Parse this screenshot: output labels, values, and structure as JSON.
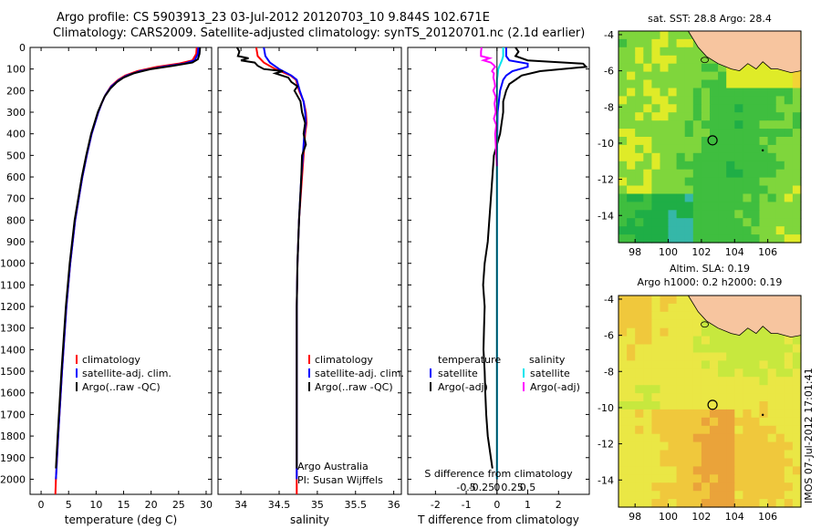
{
  "header": {
    "title1": "Argo profile: CS 5903913_23 03-Jul-2012 20120703_10 9.844S 102.671E",
    "title2": "Climatology: CARS2009. Satellite-adjusted climatology: synTS_20120701.nc (2.1d earlier)"
  },
  "stamp": "IMOS 07-Jul-2012 17:01:41",
  "colors": {
    "climatology": "#ff0000",
    "satellite": "#0000ff",
    "argo": "#000000",
    "temp_sat_diff": "#0000ff",
    "sal_sat_diff": "#00e5ee",
    "sal_argo_diff": "#ff00ff",
    "land": "#f7c59f"
  },
  "chart_data": [
    {
      "type": "line",
      "id": "temperature-profile",
      "xlabel": "temperature (deg C)",
      "xlim": [
        -2,
        31
      ],
      "xticks": [
        0,
        5,
        10,
        15,
        20,
        25,
        30
      ],
      "ylim": [
        2070,
        0
      ],
      "yticks": [
        0,
        100,
        200,
        300,
        400,
        500,
        600,
        700,
        800,
        900,
        1000,
        1100,
        1200,
        1300,
        1400,
        1500,
        1600,
        1700,
        1800,
        1900,
        2000
      ],
      "legend": [
        "climatology",
        "satellite-adj. clim.",
        "Argo(..raw -QC)"
      ],
      "series": [
        {
          "name": "climatology",
          "color": "#ff0000",
          "depth": [
            0,
            30,
            60,
            75,
            90,
            110,
            130,
            150,
            180,
            220,
            260,
            300,
            400,
            500,
            600,
            800,
            1000,
            1200,
            1500,
            1800,
            2000,
            2070
          ],
          "values": [
            28.3,
            28.2,
            27.5,
            25.0,
            21.0,
            17.5,
            15.3,
            14.0,
            12.7,
            11.7,
            11.0,
            10.4,
            9.2,
            8.3,
            7.5,
            6.2,
            5.3,
            4.6,
            3.8,
            3.1,
            2.7,
            2.6
          ]
        },
        {
          "name": "satellite-adj. clim.",
          "color": "#0000ff",
          "depth": [
            0,
            30,
            60,
            75,
            90,
            110,
            130,
            150,
            180,
            220,
            260,
            300,
            400,
            500,
            600,
            800,
            1000,
            1200,
            1500,
            1800,
            2000
          ],
          "values": [
            28.6,
            28.5,
            27.9,
            26.0,
            22.0,
            18.0,
            15.6,
            14.2,
            12.8,
            11.7,
            11.0,
            10.4,
            9.2,
            8.3,
            7.5,
            6.2,
            5.3,
            4.6,
            3.8,
            3.1,
            2.7
          ]
        },
        {
          "name": "Argo(..raw -QC)",
          "color": "#000000",
          "depth": [
            0,
            30,
            55,
            70,
            85,
            100,
            120,
            140,
            160,
            190,
            230,
            270,
            300,
            400,
            500,
            600,
            800,
            1000,
            1200,
            1500,
            1800,
            1950
          ],
          "values": [
            28.9,
            28.8,
            28.5,
            27.5,
            24.0,
            20.0,
            16.8,
            15.0,
            13.8,
            12.6,
            11.5,
            10.8,
            10.3,
            9.1,
            8.2,
            7.4,
            6.1,
            5.2,
            4.5,
            3.7,
            3.0,
            2.7
          ]
        }
      ]
    },
    {
      "type": "line",
      "id": "salinity-profile",
      "xlabel": "salinity",
      "xlim": [
        33.7,
        36.1
      ],
      "xticks": [
        34,
        34.5,
        35,
        35.5,
        36
      ],
      "ylim": [
        2070,
        0
      ],
      "legend": [
        "climatology",
        "satellite-adj. clim.",
        "Argo(..raw -QC)"
      ],
      "annotation": [
        "Argo Australia",
        "PI: Susan Wijffels"
      ],
      "series": [
        {
          "name": "climatology",
          "color": "#ff0000",
          "depth": [
            0,
            40,
            70,
            100,
            130,
            150,
            200,
            250,
            300,
            350,
            400,
            500,
            600,
            800,
            1000,
            1200,
            1500,
            1800,
            2000,
            2070
          ],
          "values": [
            34.2,
            34.22,
            34.3,
            34.45,
            34.65,
            34.72,
            34.76,
            34.82,
            34.85,
            34.86,
            34.84,
            34.82,
            34.8,
            34.76,
            34.74,
            34.73,
            34.73,
            34.73,
            34.73,
            34.73
          ]
        },
        {
          "name": "satellite-adj. clim.",
          "color": "#0000ff",
          "depth": [
            0,
            40,
            70,
            100,
            130,
            150,
            200,
            250,
            300,
            350,
            400,
            500,
            600,
            800,
            1000,
            1200,
            1500,
            1800,
            2000
          ],
          "values": [
            34.3,
            34.32,
            34.38,
            34.5,
            34.66,
            34.73,
            34.77,
            34.82,
            34.84,
            34.85,
            34.83,
            34.81,
            34.79,
            34.76,
            34.74,
            34.73,
            34.73,
            34.73,
            34.73
          ]
        },
        {
          "name": "Argo(..raw -QC)",
          "color": "#000000",
          "depth": [
            0,
            20,
            40,
            50,
            60,
            70,
            85,
            100,
            110,
            120,
            140,
            160,
            180,
            200,
            250,
            300,
            350,
            400,
            450,
            500,
            600,
            800,
            1000,
            1200,
            1500,
            1800,
            1950
          ],
          "values": [
            33.95,
            33.98,
            33.96,
            34.1,
            34.0,
            34.18,
            34.22,
            34.3,
            34.55,
            34.45,
            34.62,
            34.66,
            34.74,
            34.7,
            34.78,
            34.8,
            34.84,
            34.82,
            34.85,
            34.8,
            34.79,
            34.76,
            34.74,
            34.73,
            34.73,
            34.73,
            34.73
          ]
        }
      ]
    },
    {
      "type": "line",
      "id": "difference-profile",
      "xlabel": "T difference from climatology",
      "xlabel_top": "S difference from climatology",
      "xlim": [
        -2.9,
        3.0
      ],
      "xticks": [
        -2,
        -1,
        0,
        1,
        2
      ],
      "sticks": [
        -0.5,
        -0.25,
        0,
        0.25,
        0.5
      ],
      "sticklabels": [
        "-0.5",
        "-0.25",
        "0",
        "0.25",
        "0.5"
      ],
      "ylim": [
        2070,
        0
      ],
      "legend_temperature": {
        "header": "temperature",
        "entries": [
          "satellite",
          "Argo(-adj)"
        ]
      },
      "legend_salinity": {
        "header": "salinity",
        "entries": [
          "satellite",
          "Argo(-adj)"
        ]
      },
      "series": [
        {
          "name": "temperature satellite",
          "color": "#0000ff",
          "depth": [
            0,
            40,
            60,
            75,
            90,
            110,
            130,
            150,
            200,
            300,
            500,
            1000,
            1500,
            2000
          ],
          "values": [
            0.3,
            0.3,
            0.4,
            1.0,
            1.0,
            0.5,
            0.3,
            0.2,
            0.1,
            0.02,
            0.0,
            0.0,
            0.0,
            0.0
          ]
        },
        {
          "name": "temperature Argo(-adj)",
          "color": "#000000",
          "depth": [
            0,
            20,
            40,
            60,
            75,
            90,
            110,
            130,
            150,
            170,
            200,
            250,
            300,
            400,
            500,
            700,
            900,
            1000,
            1100,
            1200,
            1300,
            1400,
            1500,
            1600,
            1700,
            1800,
            1900,
            1950
          ],
          "values": [
            0.6,
            0.7,
            0.6,
            1.0,
            2.8,
            2.9,
            1.4,
            0.8,
            0.6,
            0.4,
            0.3,
            0.2,
            0.2,
            0.1,
            -0.1,
            -0.2,
            -0.3,
            -0.4,
            -0.45,
            -0.4,
            -0.42,
            -0.44,
            -0.4,
            -0.38,
            -0.35,
            -0.3,
            -0.2,
            -0.15
          ]
        },
        {
          "name": "salinity satellite",
          "color": "#00e5ee",
          "depth": [
            0,
            40,
            60,
            80,
            100,
            130,
            150,
            200,
            300,
            500,
            1000,
            1500,
            2000
          ],
          "values": [
            0.1,
            0.1,
            0.08,
            0.05,
            0.02,
            0.01,
            0.0,
            0.0,
            0.0,
            0.0,
            0.0,
            0.0,
            0.0
          ]
        },
        {
          "name": "salinity Argo(-adj)",
          "color": "#ff00ff",
          "depth": [
            0,
            20,
            40,
            50,
            60,
            70,
            80,
            90,
            100,
            110,
            120,
            140,
            160,
            180,
            200,
            230,
            260,
            300,
            330,
            360,
            400,
            450,
            500,
            550
          ],
          "values": [
            -0.25,
            -0.26,
            -0.26,
            -0.12,
            -0.22,
            -0.1,
            -0.06,
            -0.03,
            -0.06,
            -0.08,
            -0.05,
            -0.06,
            -0.04,
            -0.03,
            -0.06,
            -0.02,
            -0.04,
            -0.02,
            -0.05,
            -0.01,
            -0.03,
            -0.02,
            -0.01,
            0.0
          ]
        }
      ]
    },
    {
      "type": "heatmap",
      "id": "sst-map",
      "title": "sat. SST: 28.8 Argo: 28.4",
      "xlim": [
        97,
        108
      ],
      "ylim": [
        -15.5,
        -3.8
      ],
      "xticks": [
        98,
        100,
        102,
        104,
        106
      ],
      "yticks": [
        -4,
        -6,
        -8,
        -10,
        -12,
        -14
      ],
      "argo_position": [
        102.671,
        -9.844
      ],
      "land_color": "#f7c59f",
      "scale_colors": [
        "#35b7a8",
        "#1fae46",
        "#3fbe3f",
        "#7fd63c",
        "#dfeb28",
        "#f3d335"
      ]
    },
    {
      "type": "heatmap",
      "id": "sla-map",
      "title": "Altim. SLA: 0.19",
      "subtitle": "Argo h1000: 0.2 h2000: 0.19",
      "xlim": [
        97,
        108
      ],
      "ylim": [
        -15.5,
        -3.8
      ],
      "xticks": [
        98,
        100,
        102,
        104,
        106
      ],
      "yticks": [
        -4,
        -6,
        -8,
        -10,
        -12,
        -14
      ],
      "argo_position": [
        102.671,
        -9.844
      ],
      "land_color": "#f7c59f",
      "scale_colors": [
        "#5ec35a",
        "#9ad948",
        "#c7e83e",
        "#eae745",
        "#f0c83c",
        "#eaa33a"
      ]
    }
  ]
}
